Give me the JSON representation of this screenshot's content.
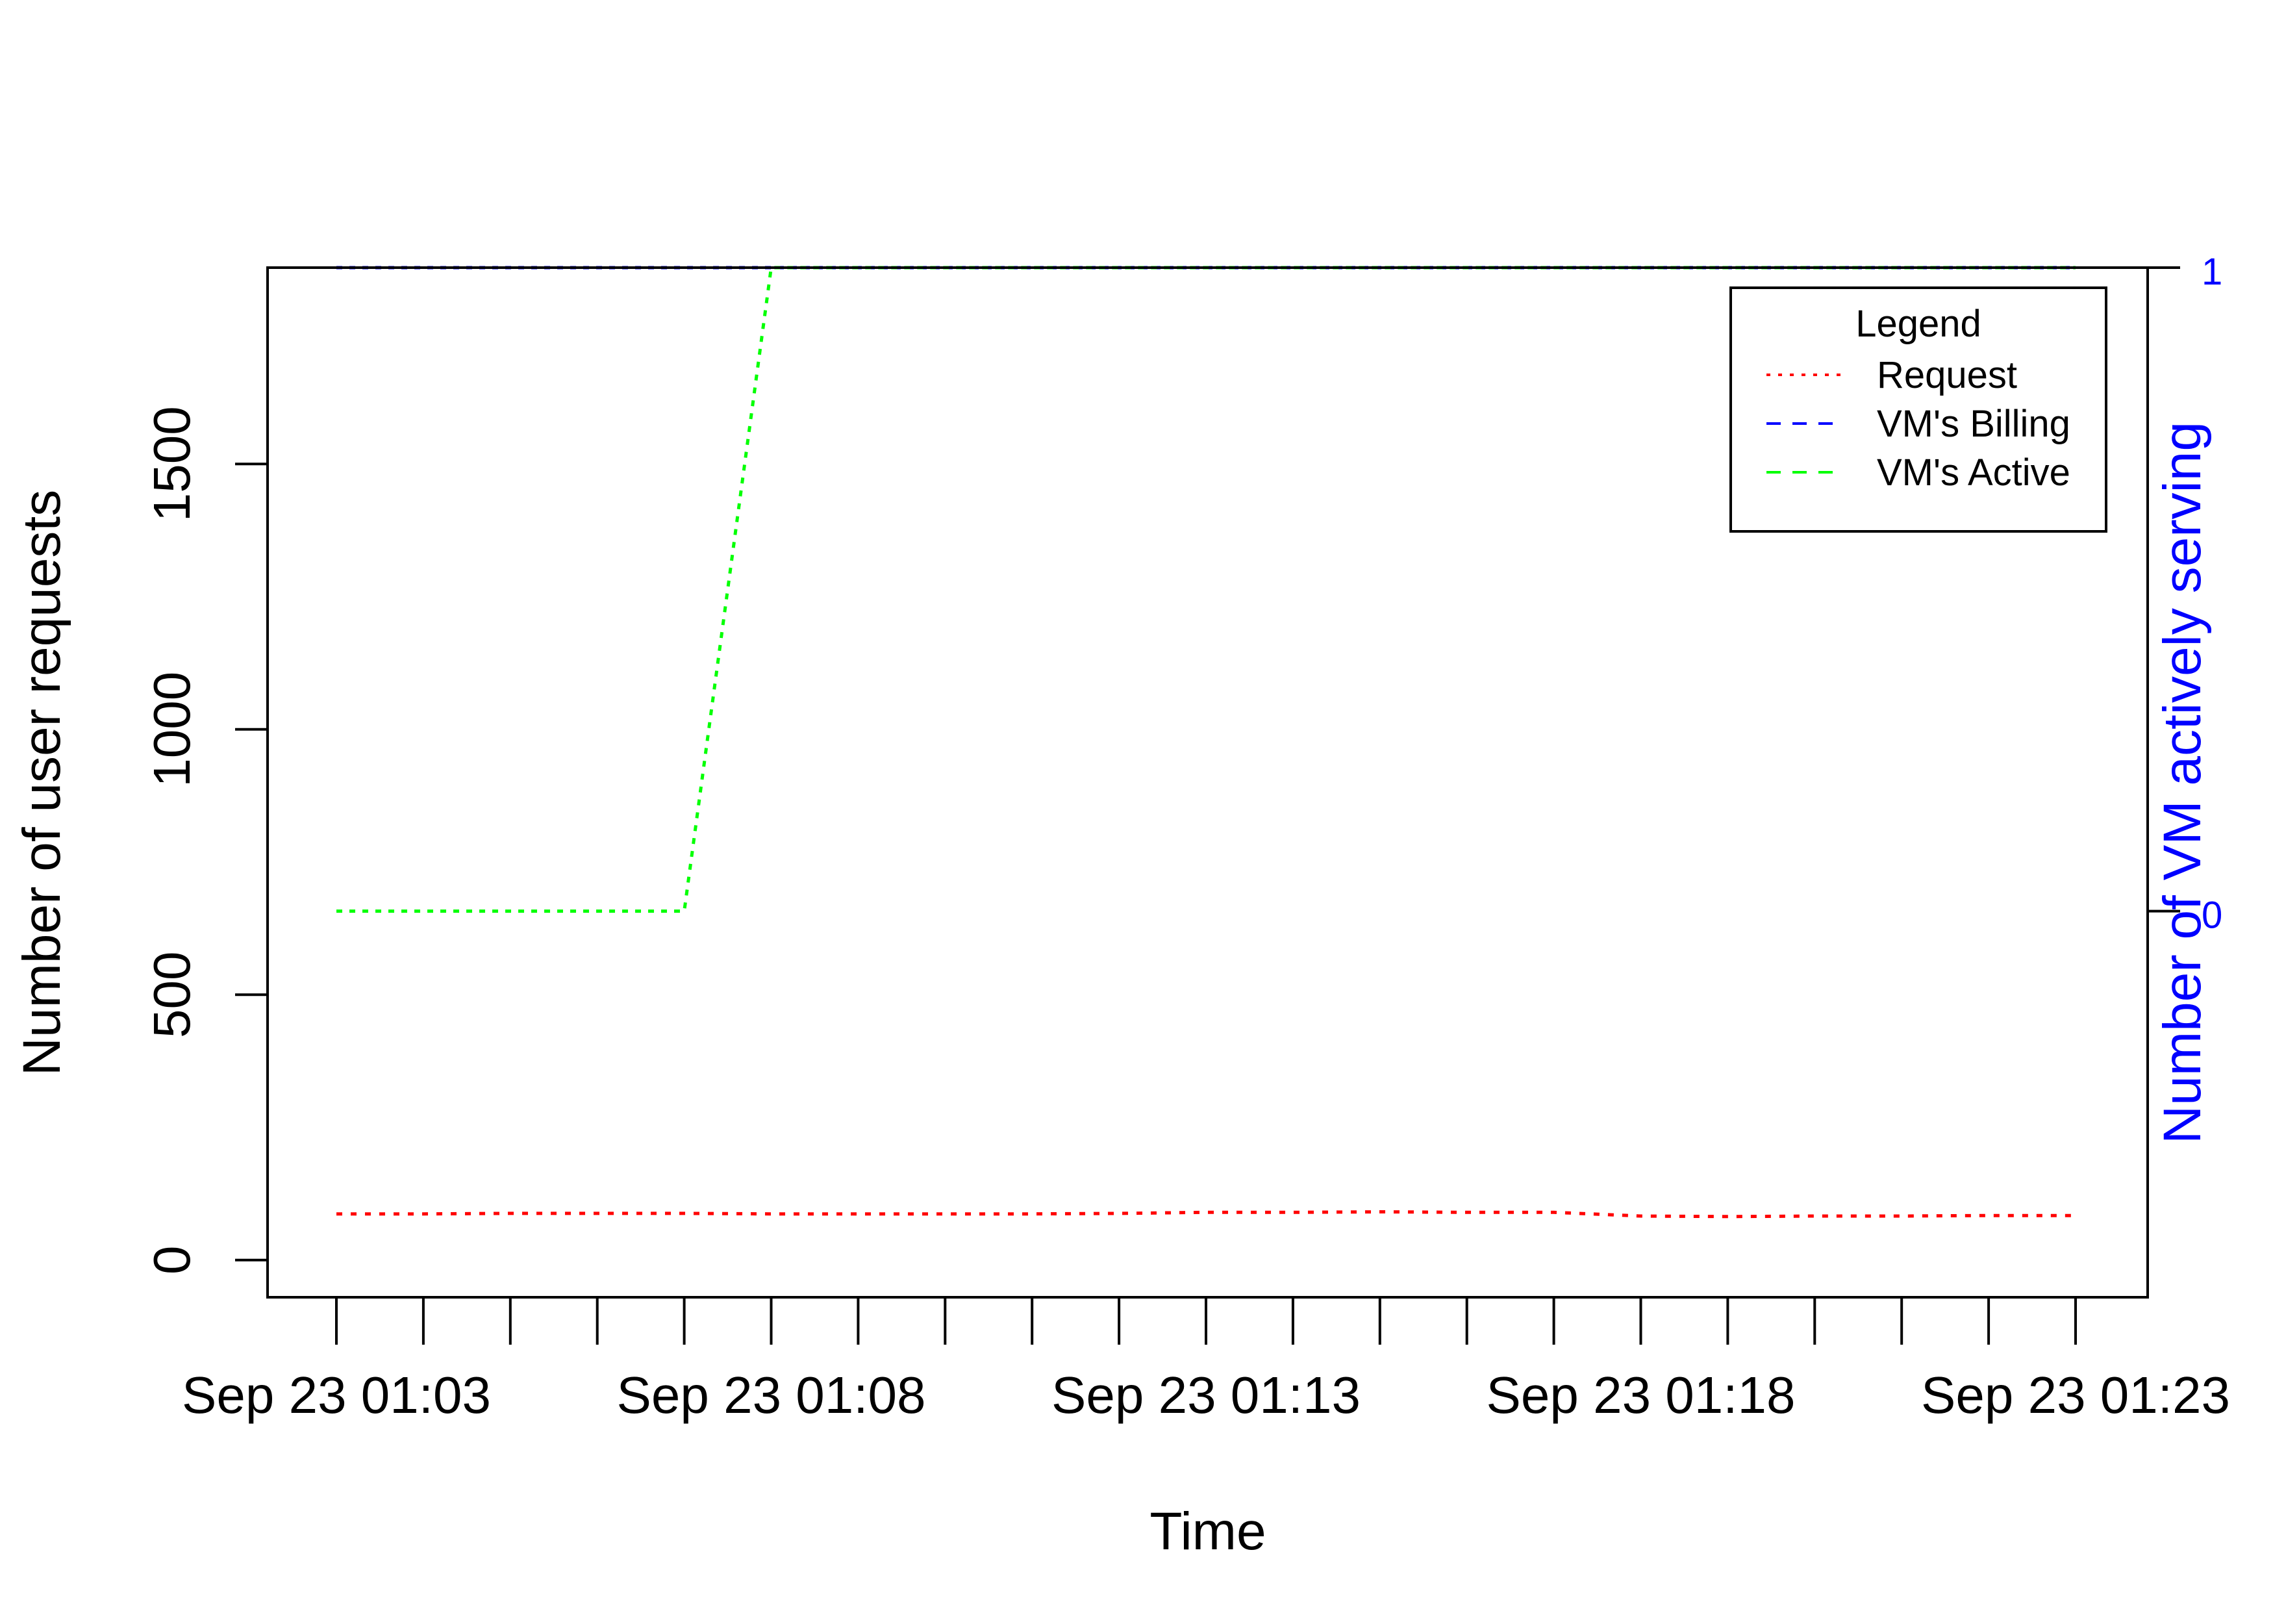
{
  "chart_data": {
    "type": "line",
    "xlabel": "Time",
    "ylabel": "Number of user requests",
    "y2label": "Number of VM actively serving",
    "x_ticks_labeled": [
      "Sep 23 01:03",
      "Sep 23 01:08",
      "Sep 23 01:13",
      "Sep 23 01:18",
      "Sep 23 01:23"
    ],
    "x_range": [
      "Sep 23 01:03",
      "Sep 23 01:23"
    ],
    "x_tick_interval_minutes": 1,
    "yticks": [
      0,
      500,
      1000,
      1500
    ],
    "ylim": [
      -70,
      1870
    ],
    "y2ticks": [
      0,
      1
    ],
    "y2lim": [
      -0.6,
      1
    ],
    "grid": false,
    "legend": {
      "title": "Legend",
      "position": "top-right",
      "entries": [
        {
          "label": "Request",
          "color": "#ff0000",
          "style": "dotted"
        },
        {
          "label": "VM's Billing",
          "color": "#0000ff",
          "style": "dashed"
        },
        {
          "label": "VM's Active",
          "color": "#00ff00",
          "style": "dashed"
        }
      ]
    },
    "series": [
      {
        "name": "Request",
        "axis": "left",
        "color": "#ff0000",
        "style": "dotted",
        "x": [
          "Sep 23 01:03",
          "Sep 23 01:04",
          "Sep 23 01:05",
          "Sep 23 01:06",
          "Sep 23 01:07",
          "Sep 23 01:08",
          "Sep 23 01:09",
          "Sep 23 01:10",
          "Sep 23 01:11",
          "Sep 23 01:12",
          "Sep 23 01:13",
          "Sep 23 01:14",
          "Sep 23 01:15",
          "Sep 23 01:16",
          "Sep 23 01:17",
          "Sep 23 01:18",
          "Sep 23 01:19",
          "Sep 23 01:20",
          "Sep 23 01:21",
          "Sep 23 01:22",
          "Sep 23 01:23"
        ],
        "values": [
          87,
          87,
          88,
          88,
          88,
          87,
          87,
          87,
          87,
          88,
          90,
          90,
          91,
          90,
          90,
          83,
          82,
          83,
          83,
          84,
          84
        ]
      },
      {
        "name": "VM's Billing",
        "axis": "right",
        "color": "#0000ff",
        "style": "dashed",
        "x": [
          "Sep 23 01:03",
          "Sep 23 01:23"
        ],
        "values": [
          1,
          1
        ]
      },
      {
        "name": "VM's Active",
        "axis": "right",
        "color": "#00ff00",
        "style": "dashed",
        "x": [
          "Sep 23 01:03",
          "Sep 23 01:04",
          "Sep 23 01:05",
          "Sep 23 01:06",
          "Sep 23 01:07",
          "Sep 23 01:08",
          "Sep 23 01:09",
          "Sep 23 01:10",
          "Sep 23 01:11",
          "Sep 23 01:12",
          "Sep 23 01:13",
          "Sep 23 01:14",
          "Sep 23 01:15",
          "Sep 23 01:16",
          "Sep 23 01:17",
          "Sep 23 01:18",
          "Sep 23 01:19",
          "Sep 23 01:20",
          "Sep 23 01:21",
          "Sep 23 01:22",
          "Sep 23 01:23"
        ],
        "values": [
          0,
          0,
          0,
          0,
          0,
          1,
          1,
          1,
          1,
          1,
          1,
          1,
          1,
          1,
          1,
          1,
          1,
          1,
          1,
          1,
          1
        ]
      }
    ],
    "colors": {
      "axis": "#000000",
      "right_axis": "#0000ff"
    }
  }
}
